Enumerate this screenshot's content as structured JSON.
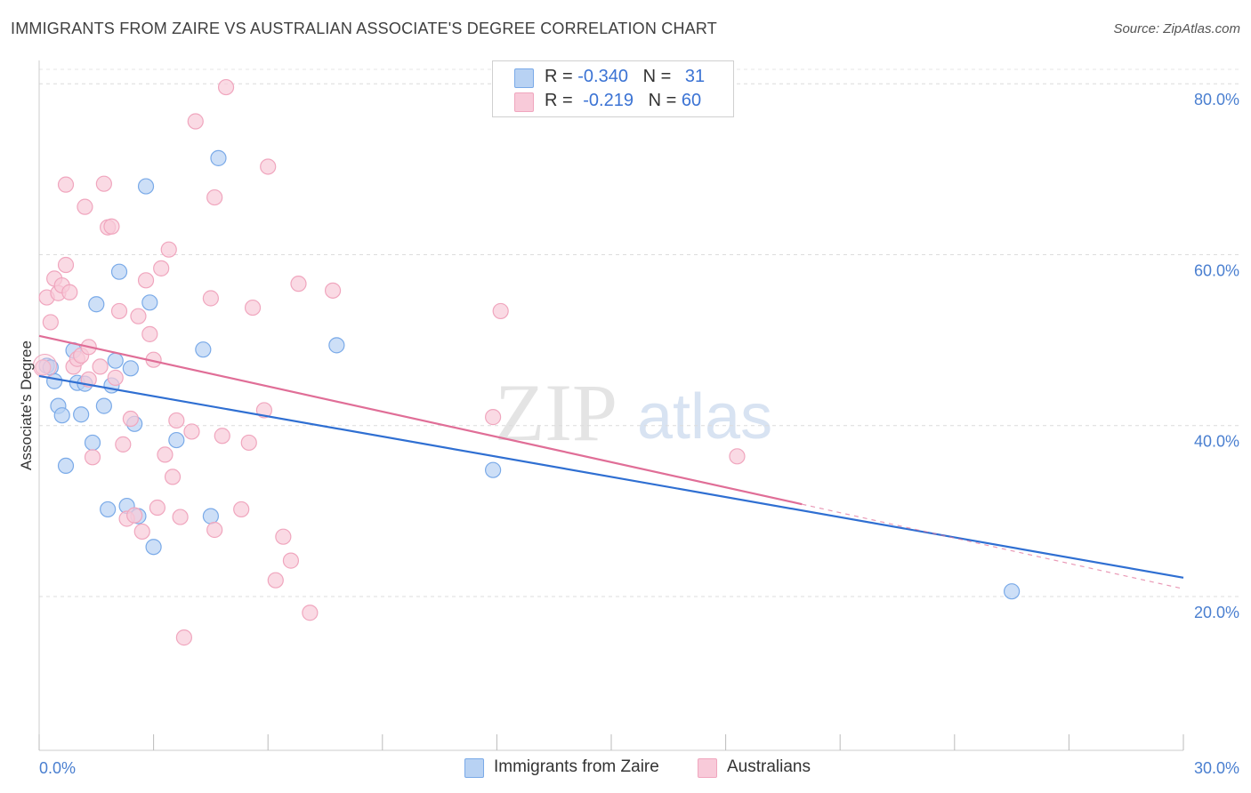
{
  "title": "IMMIGRANTS FROM ZAIRE VS AUSTRALIAN ASSOCIATE'S DEGREE CORRELATION CHART",
  "source": "Source: ZipAtlas.com",
  "watermark": {
    "zip": "ZIP",
    "atlas": "atlas"
  },
  "legend": {
    "rows": [
      {
        "r_label": "R = ",
        "r_value": "-0.340",
        "n_label": "N = ",
        "n_value": "31"
      },
      {
        "r_label": "R = ",
        "r_value": "-0.219",
        "n_label": "N = ",
        "n_value": "60"
      }
    ]
  },
  "chart_data": {
    "type": "scatter",
    "title": "IMMIGRANTS FROM ZAIRE VS AUSTRALIAN ASSOCIATE'S DEGREE CORRELATION CHART",
    "xlabel": "",
    "ylabel": "Associate's Degree",
    "xlim": [
      0,
      30
    ],
    "ylim": [
      2,
      82
    ],
    "x_ticks_labeled": [
      {
        "value": 0,
        "label": "0.0%"
      },
      {
        "value": 30,
        "label": "30.0%"
      }
    ],
    "x_ticks_minor": [
      0,
      3,
      6,
      9,
      12,
      15,
      18,
      21,
      24,
      27,
      30
    ],
    "y_ticks": [
      {
        "value": 20,
        "label": "20.0%"
      },
      {
        "value": 40,
        "label": "40.0%"
      },
      {
        "value": 60,
        "label": "60.0%"
      },
      {
        "value": 80,
        "label": "80.0%"
      }
    ],
    "grid": true,
    "series": [
      {
        "name": "Immigrants from Zaire",
        "color": "#7aaae8",
        "fill": "#b8d2f3",
        "line_color": "#2f6fd2",
        "r": -0.34,
        "n": 31,
        "trend": {
          "x0": 0,
          "y0": 45.8,
          "x1": 30,
          "y1": 22.2
        },
        "points": [
          [
            0.2,
            47.0
          ],
          [
            0.3,
            46.8
          ],
          [
            0.4,
            45.2
          ],
          [
            0.5,
            42.3
          ],
          [
            0.6,
            41.2
          ],
          [
            0.7,
            35.3
          ],
          [
            0.9,
            48.8
          ],
          [
            1.0,
            45.0
          ],
          [
            1.1,
            41.3
          ],
          [
            1.2,
            44.9
          ],
          [
            1.4,
            38.0
          ],
          [
            1.5,
            54.2
          ],
          [
            1.7,
            42.3
          ],
          [
            1.8,
            30.2
          ],
          [
            1.9,
            44.7
          ],
          [
            2.0,
            47.6
          ],
          [
            2.1,
            58.0
          ],
          [
            2.3,
            30.6
          ],
          [
            2.4,
            46.7
          ],
          [
            2.5,
            40.2
          ],
          [
            2.6,
            29.4
          ],
          [
            2.8,
            68.0
          ],
          [
            2.9,
            54.4
          ],
          [
            3.0,
            25.8
          ],
          [
            3.6,
            38.3
          ],
          [
            4.3,
            48.9
          ],
          [
            4.5,
            29.4
          ],
          [
            4.7,
            71.3
          ],
          [
            7.8,
            49.4
          ],
          [
            11.9,
            34.8
          ],
          [
            25.5,
            20.6
          ]
        ]
      },
      {
        "name": "Australians",
        "color": "#f0a6be",
        "fill": "#f8cad9",
        "line_color": "#e06e97",
        "r": -0.219,
        "n": 60,
        "trend": {
          "x0": 0,
          "y0": 50.5,
          "x1": 20,
          "y1": 30.8
        },
        "trend_dashed": {
          "x0": 20,
          "y0": 30.8,
          "x1": 30,
          "y1": 20.9
        },
        "points": [
          [
            0.1,
            46.8
          ],
          [
            0.2,
            55.0
          ],
          [
            0.3,
            52.1
          ],
          [
            0.4,
            57.2
          ],
          [
            0.5,
            55.5
          ],
          [
            0.6,
            56.4
          ],
          [
            0.7,
            58.8
          ],
          [
            0.7,
            68.2
          ],
          [
            0.8,
            55.6
          ],
          [
            0.9,
            46.9
          ],
          [
            1.0,
            47.8
          ],
          [
            1.1,
            48.2
          ],
          [
            1.2,
            65.6
          ],
          [
            1.3,
            49.2
          ],
          [
            1.3,
            45.4
          ],
          [
            1.4,
            36.3
          ],
          [
            1.6,
            46.9
          ],
          [
            1.7,
            68.3
          ],
          [
            1.8,
            63.2
          ],
          [
            1.9,
            63.3
          ],
          [
            2.0,
            45.6
          ],
          [
            2.1,
            53.4
          ],
          [
            2.2,
            37.8
          ],
          [
            2.3,
            29.1
          ],
          [
            2.4,
            40.8
          ],
          [
            2.5,
            29.5
          ],
          [
            2.6,
            52.8
          ],
          [
            2.7,
            27.6
          ],
          [
            2.8,
            57.0
          ],
          [
            2.9,
            50.7
          ],
          [
            3.0,
            47.7
          ],
          [
            3.1,
            30.4
          ],
          [
            3.2,
            58.4
          ],
          [
            3.3,
            36.6
          ],
          [
            3.4,
            60.6
          ],
          [
            3.5,
            34.0
          ],
          [
            3.6,
            40.6
          ],
          [
            3.7,
            29.3
          ],
          [
            3.8,
            15.2
          ],
          [
            4.0,
            39.3
          ],
          [
            4.1,
            75.6
          ],
          [
            4.5,
            54.9
          ],
          [
            4.6,
            66.7
          ],
          [
            4.6,
            27.8
          ],
          [
            4.8,
            38.8
          ],
          [
            4.9,
            79.6
          ],
          [
            5.3,
            30.2
          ],
          [
            5.5,
            38.0
          ],
          [
            5.6,
            53.8
          ],
          [
            5.9,
            41.8
          ],
          [
            6.0,
            70.3
          ],
          [
            6.2,
            21.9
          ],
          [
            6.4,
            27.0
          ],
          [
            6.6,
            24.2
          ],
          [
            6.8,
            56.6
          ],
          [
            7.1,
            18.1
          ],
          [
            7.7,
            55.8
          ],
          [
            11.9,
            41.0
          ],
          [
            12.1,
            53.4
          ],
          [
            18.3,
            36.4
          ]
        ]
      }
    ]
  }
}
